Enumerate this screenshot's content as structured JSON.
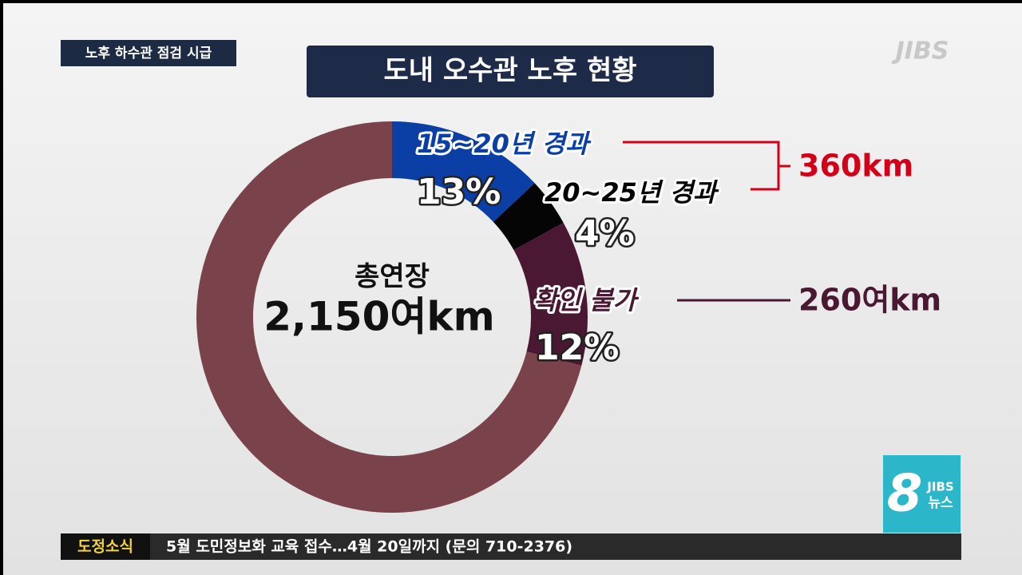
{
  "tag": "노후 하수관 점검 시급",
  "logo": "JIBS",
  "badge": {
    "number": "8",
    "brand": "JIBS",
    "label": "뉴스"
  },
  "ticker": {
    "label": "도정소식",
    "text": "5월 도민정보화 교육 접수…4월 20일까지 (문의 710-2376)"
  },
  "chart_data": {
    "type": "donut",
    "title": "도내 오수관 노후 현황",
    "center_label": "총연장",
    "center_value": "2,150여km",
    "categories": [
      "15~20년 경과",
      "20~25년 경과",
      "확인 불가",
      null
    ],
    "values": [
      13,
      4,
      12,
      71
    ],
    "value_labels": [
      "13%",
      "4%",
      "12%",
      null
    ],
    "colors": [
      "#0b3fa6",
      "#050505",
      "#4a1833",
      "#7a434b"
    ],
    "label_colors": [
      "#0b3fa6",
      "#050505",
      "#4a1833",
      null
    ],
    "annotations": [
      {
        "text": "360km",
        "color": "#d40018"
      },
      {
        "text": "260여km",
        "color": "#4a1833"
      }
    ]
  }
}
